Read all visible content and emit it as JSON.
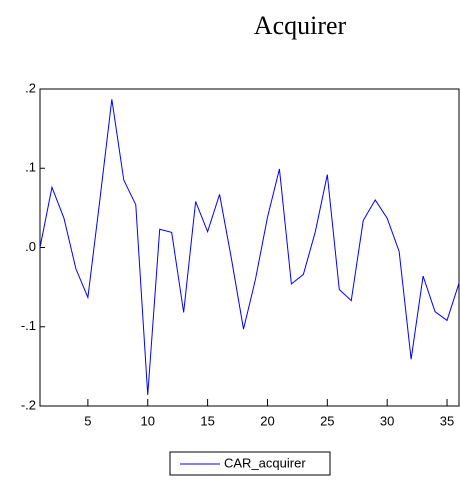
{
  "chart_data": {
    "type": "line",
    "title": "Acquirer",
    "x": [
      1,
      2,
      3,
      4,
      5,
      6,
      7,
      8,
      9,
      10,
      11,
      12,
      13,
      14,
      15,
      16,
      17,
      18,
      19,
      20,
      21,
      22,
      23,
      24,
      25,
      26,
      27,
      28,
      29,
      30,
      31,
      32,
      33,
      34,
      35,
      36
    ],
    "series": [
      {
        "name": "CAR_acquirer",
        "color": "#0000ff",
        "values": [
          0.0,
          0.076,
          0.037,
          -0.027,
          -0.063,
          0.06,
          0.187,
          0.085,
          0.054,
          -0.186,
          0.023,
          0.019,
          -0.082,
          0.058,
          0.02,
          0.067,
          -0.015,
          -0.103,
          -0.04,
          0.038,
          0.099,
          -0.046,
          -0.034,
          0.02,
          0.092,
          -0.053,
          -0.067,
          0.034,
          0.06,
          0.037,
          -0.005,
          -0.141,
          -0.036,
          -0.081,
          -0.092,
          -0.045
        ]
      }
    ],
    "xlim": [
      1,
      36
    ],
    "xticks": [
      5,
      10,
      15,
      20,
      25,
      30,
      35
    ],
    "ylim": [
      -0.2,
      0.2
    ],
    "yticks": [
      {
        "value": -0.2,
        "label": "-.2"
      },
      {
        "value": -0.1,
        "label": "-.1"
      },
      {
        "value": 0,
        "label": ".0"
      },
      {
        "value": 0.1,
        "label": ".1"
      },
      {
        "value": 0.2,
        "label": ".2"
      }
    ]
  }
}
